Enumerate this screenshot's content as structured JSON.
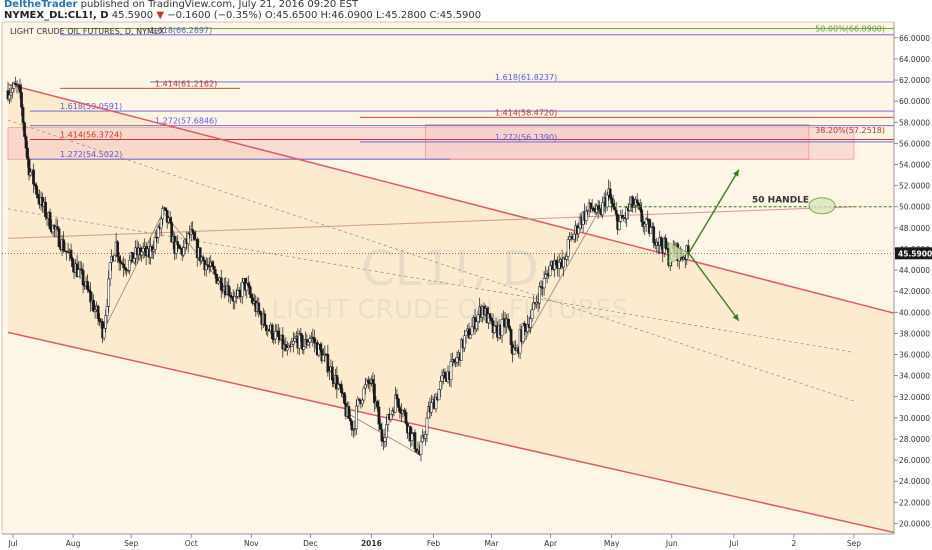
{
  "header": {
    "author": "DeltheTrader",
    "published": "published on TradingView.com, July 21, 2016 09:20 EST",
    "symbol": "NYMEX_DL:CL1!, D",
    "last": "45.5900",
    "change": "−0.1600 (−0.35%)",
    "open": "O:45.6500",
    "high": "H:46.0900",
    "low": "L:45.2800",
    "close": "C:45.5900",
    "arrow": "▼"
  },
  "colors": {
    "background": "#fdf5e6",
    "channel_fill": "#fbe7c6",
    "channel_line": "#e05a68",
    "up_candle": "#ffffff",
    "down_candle": "#1a1a1a",
    "fib_blue": "#5b5bd6",
    "fib_red": "#c0392b",
    "zone_fill": "#f7c9c9",
    "arrow_green": "#3a7d1e",
    "retrace_green": "#5d9e2b",
    "price_label_bg": "#1a1a1a"
  },
  "chart_data": {
    "type": "candlestick",
    "title": "LIGHT CRUDE OIL FUTURES, D, NYMEX",
    "watermark_symbol": "CL1!, D",
    "watermark_name": "LIGHT CRUDE OIL FUTURES",
    "ylim": [
      19,
      67.5
    ],
    "yticks": [
      "66.0000",
      "64.0000",
      "62.0000",
      "60.0000",
      "58.0000",
      "56.0000",
      "54.0000",
      "52.0000",
      "50.0000",
      "48.0000",
      "46.0000",
      "44.0000",
      "42.0000",
      "40.0000",
      "38.0000",
      "36.0000",
      "34.0000",
      "32.0000",
      "30.0000",
      "28.0000",
      "26.0000",
      "24.0000",
      "22.0000",
      "20.0000"
    ],
    "yticks_values": [
      66,
      64,
      62,
      60,
      58,
      56,
      54,
      52,
      50,
      48,
      46,
      44,
      42,
      40,
      38,
      36,
      34,
      32,
      30,
      28,
      26,
      24,
      22,
      20
    ],
    "xticks": [
      "Jul",
      "Aug",
      "Sep",
      "Oct",
      "Nov",
      "Dec",
      "2016",
      "Feb",
      "Mar",
      "Apr",
      "May",
      "Jun",
      "Jul",
      "2",
      "Sep"
    ],
    "xticks_day": [
      5,
      65,
      123,
      183,
      243,
      302,
      363,
      425,
      483,
      542,
      603,
      663,
      725,
      785,
      845
    ],
    "last_price": "45.5900",
    "last_price_value": 45.59,
    "price_path": {
      "start": "2015-06-24",
      "end": "2016-07-21",
      "keypoints": [
        [
          0,
          61.0
        ],
        [
          10,
          61.3
        ],
        [
          14,
          59.0
        ],
        [
          20,
          54.0
        ],
        [
          32,
          50.5
        ],
        [
          45,
          48.0
        ],
        [
          60,
          45.5
        ],
        [
          75,
          43.0
        ],
        [
          88,
          40.0
        ],
        [
          95,
          38.2
        ],
        [
          100,
          42.0
        ],
        [
          103,
          45.0
        ],
        [
          108,
          46.5
        ],
        [
          112,
          44.8
        ],
        [
          120,
          44.5
        ],
        [
          128,
          45.5
        ],
        [
          135,
          45.8
        ],
        [
          140,
          45.2
        ],
        [
          145,
          46.5
        ],
        [
          150,
          47.5
        ],
        [
          155,
          49.5
        ],
        [
          160,
          48.5
        ],
        [
          167,
          46.0
        ],
        [
          175,
          45.8
        ],
        [
          182,
          47.5
        ],
        [
          190,
          45.6
        ],
        [
          200,
          44.3
        ],
        [
          210,
          43.2
        ],
        [
          220,
          42.2
        ],
        [
          228,
          41.0
        ],
        [
          236,
          42.8
        ],
        [
          242,
          41.5
        ],
        [
          250,
          40.0
        ],
        [
          260,
          38.5
        ],
        [
          270,
          37.5
        ],
        [
          280,
          36.0
        ],
        [
          288,
          37.5
        ],
        [
          296,
          36.8
        ],
        [
          302,
          37.8
        ],
        [
          310,
          36.5
        ],
        [
          320,
          35.0
        ],
        [
          330,
          33.0
        ],
        [
          338,
          30.5
        ],
        [
          345,
          29.0
        ],
        [
          350,
          31.5
        ],
        [
          355,
          32.5
        ],
        [
          362,
          33.5
        ],
        [
          368,
          31.0
        ],
        [
          373,
          28.0
        ],
        [
          380,
          29.8
        ],
        [
          388,
          32.0
        ],
        [
          395,
          30.5
        ],
        [
          402,
          28.5
        ],
        [
          407,
          27.5
        ],
        [
          411,
          26.5
        ],
        [
          415,
          28.0
        ],
        [
          420,
          30.5
        ],
        [
          428,
          32.0
        ],
        [
          435,
          33.8
        ],
        [
          442,
          34.5
        ],
        [
          450,
          35.8
        ],
        [
          456,
          37.5
        ],
        [
          462,
          38.2
        ],
        [
          468,
          39.5
        ],
        [
          474,
          40.5
        ],
        [
          480,
          39.2
        ],
        [
          486,
          38.0
        ],
        [
          492,
          38.5
        ],
        [
          498,
          39.0
        ],
        [
          504,
          36.5
        ],
        [
          508,
          36.0
        ],
        [
          512,
          37.8
        ],
        [
          518,
          38.8
        ],
        [
          524,
          40.0
        ],
        [
          530,
          41.8
        ],
        [
          536,
          43.0
        ],
        [
          542,
          44.5
        ],
        [
          548,
          45.0
        ],
        [
          554,
          44.2
        ],
        [
          560,
          46.5
        ],
        [
          566,
          47.5
        ],
        [
          572,
          48.8
        ],
        [
          578,
          49.5
        ],
        [
          584,
          50.0
        ],
        [
          590,
          49.0
        ],
        [
          596,
          50.5
        ],
        [
          600,
          51.2
        ],
        [
          605,
          49.5
        ],
        [
          610,
          48.4
        ],
        [
          616,
          49.0
        ],
        [
          622,
          50.2
        ],
        [
          628,
          50.0
        ],
        [
          632,
          49.0
        ],
        [
          636,
          48.2
        ],
        [
          640,
          48.0
        ],
        [
          646,
          47.2
        ],
        [
          652,
          46.5
        ],
        [
          656,
          46.2
        ],
        [
          660,
          45.2
        ],
        [
          666,
          46.0
        ],
        [
          672,
          45.3
        ],
        [
          676,
          45.5
        ],
        [
          680,
          45.59
        ]
      ]
    },
    "channel": {
      "upper": [
        [
          0,
          61.6
        ],
        [
          845,
          40.9
        ]
      ],
      "lower": [
        [
          0,
          38.1
        ],
        [
          845,
          20.0
        ]
      ],
      "mid_trend": [
        [
          0,
          47.0
        ],
        [
          845,
          50.0
        ]
      ],
      "dashed_guide_1": [
        [
          0,
          58.2
        ],
        [
          845,
          31.6
        ]
      ],
      "dashed_guide_2": [
        [
          0,
          49.8
        ],
        [
          845,
          36.2
        ]
      ]
    },
    "horizontal_levels": [
      {
        "label": "1.618(66.2897)",
        "value": 66.29,
        "color": "fib_blue",
        "x_start": 0
      },
      {
        "label": "1.618(61.8237)",
        "value": 61.82,
        "color": "fib_blue",
        "x_start": 0
      },
      {
        "label": "1.414(61.2162)",
        "value": 61.22,
        "color": "fib_red",
        "x_start": 0
      },
      {
        "label": "1.618(59.0591)",
        "value": 59.06,
        "color": "fib_blue",
        "x_start": 0
      },
      {
        "label": "1.414(58.4720)",
        "value": 58.47,
        "color": "fib_red",
        "x_start": 0
      },
      {
        "label": "1.272(57.6846)",
        "value": 57.68,
        "color": "fib_blue",
        "x_start": 0
      },
      {
        "label": "1.414(56.3724)",
        "value": 56.37,
        "color": "fib_red",
        "x_start": 0
      },
      {
        "label": "1.272(56.1390)",
        "value": 56.14,
        "color": "fib_blue",
        "x_start": 0
      },
      {
        "label": "1.272(54.5022)",
        "value": 54.5,
        "color": "fib_blue",
        "x_start": 0
      }
    ],
    "retracements": [
      {
        "label": "50.00%(66.8900)",
        "value": 66.89
      },
      {
        "label": "38.20%(57.2518)",
        "value": 57.25
      }
    ],
    "zones": [
      {
        "from_day": 0,
        "to_day": 845,
        "top": 57.5,
        "bottom": 54.5
      },
      {
        "from_day": 417,
        "to_day": 800,
        "top": 57.8,
        "bottom": 54.5
      }
    ],
    "annotation": {
      "text": "50 HANDLE",
      "value": 50.0
    },
    "projection": {
      "origin": [
        680,
        45.6
      ],
      "up_target": [
        730,
        53.5
      ],
      "down_target": [
        730,
        39.2
      ]
    }
  }
}
